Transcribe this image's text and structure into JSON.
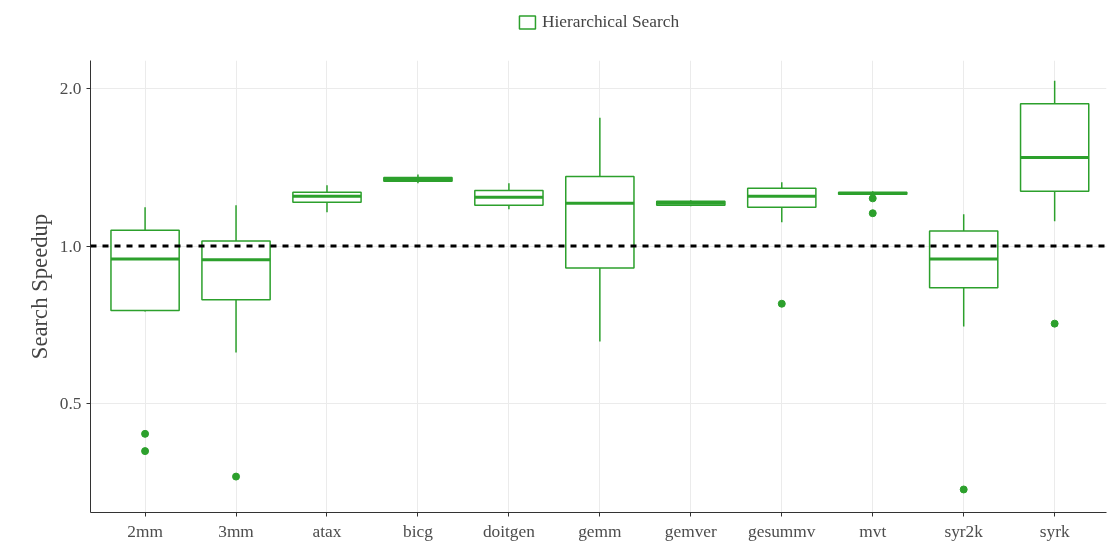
{
  "chart_data": {
    "type": "box",
    "ylabel": "Search Speedup",
    "log": true,
    "grid": true,
    "legend": "top",
    "categories": [
      "2mm",
      "3mm",
      "atax",
      "bicg",
      "doitgen",
      "gemm",
      "gemver",
      "gesummv",
      "mvt",
      "syr2k",
      "syrk"
    ],
    "ylim": [
      0.31,
      2.26
    ],
    "yticks": [
      {
        "value": 0.5,
        "label": "0.5"
      },
      {
        "value": 1,
        "label": "1.0"
      },
      {
        "value": 2,
        "label": "2.0"
      }
    ],
    "ref_lines": [
      {
        "axis": "y",
        "value": 1,
        "color": "#000000",
        "line_style": "dashed"
      }
    ],
    "series": [
      {
        "name": "Hierarchical Search",
        "color": "#2ca02c",
        "boxes": [
          {
            "low": 0.75,
            "q1": 0.753,
            "median": 0.945,
            "q3": 1.072,
            "high": 1.186,
            "outliers": [
              0.438,
              0.406
            ]
          },
          {
            "low": 0.626,
            "q1": 0.79,
            "median": 0.941,
            "q3": 1.022,
            "high": 1.196,
            "outliers": [
              0.363
            ]
          },
          {
            "low": 1.16,
            "q1": 1.212,
            "median": 1.244,
            "q3": 1.266,
            "high": 1.306
          },
          {
            "low": 1.317,
            "q1": 1.329,
            "median": 1.34,
            "q3": 1.352,
            "high": 1.37
          },
          {
            "low": 1.175,
            "q1": 1.196,
            "median": 1.239,
            "q3": 1.277,
            "high": 1.317
          },
          {
            "low": 0.657,
            "q1": 0.908,
            "median": 1.207,
            "q3": 1.358,
            "high": 1.758
          },
          {
            "low": 1.191,
            "q1": 1.196,
            "median": 1.207,
            "q3": 1.217,
            "high": 1.223
          },
          {
            "low": 1.11,
            "q1": 1.186,
            "median": 1.244,
            "q3": 1.289,
            "high": 1.323,
            "outliers": [
              0.776
            ]
          },
          {
            "low": 1.25,
            "q1": 1.255,
            "median": 1.26,
            "q3": 1.266,
            "high": 1.272,
            "outliers": [
              1.233,
              1.155
            ]
          },
          {
            "low": 0.702,
            "q1": 0.832,
            "median": 0.945,
            "q3": 1.068,
            "high": 1.15,
            "outliers": [
              0.343
            ]
          },
          {
            "low": 1.115,
            "q1": 1.272,
            "median": 1.476,
            "q3": 1.869,
            "high": 2.067,
            "outliers": [
              0.711
            ]
          }
        ]
      }
    ]
  }
}
